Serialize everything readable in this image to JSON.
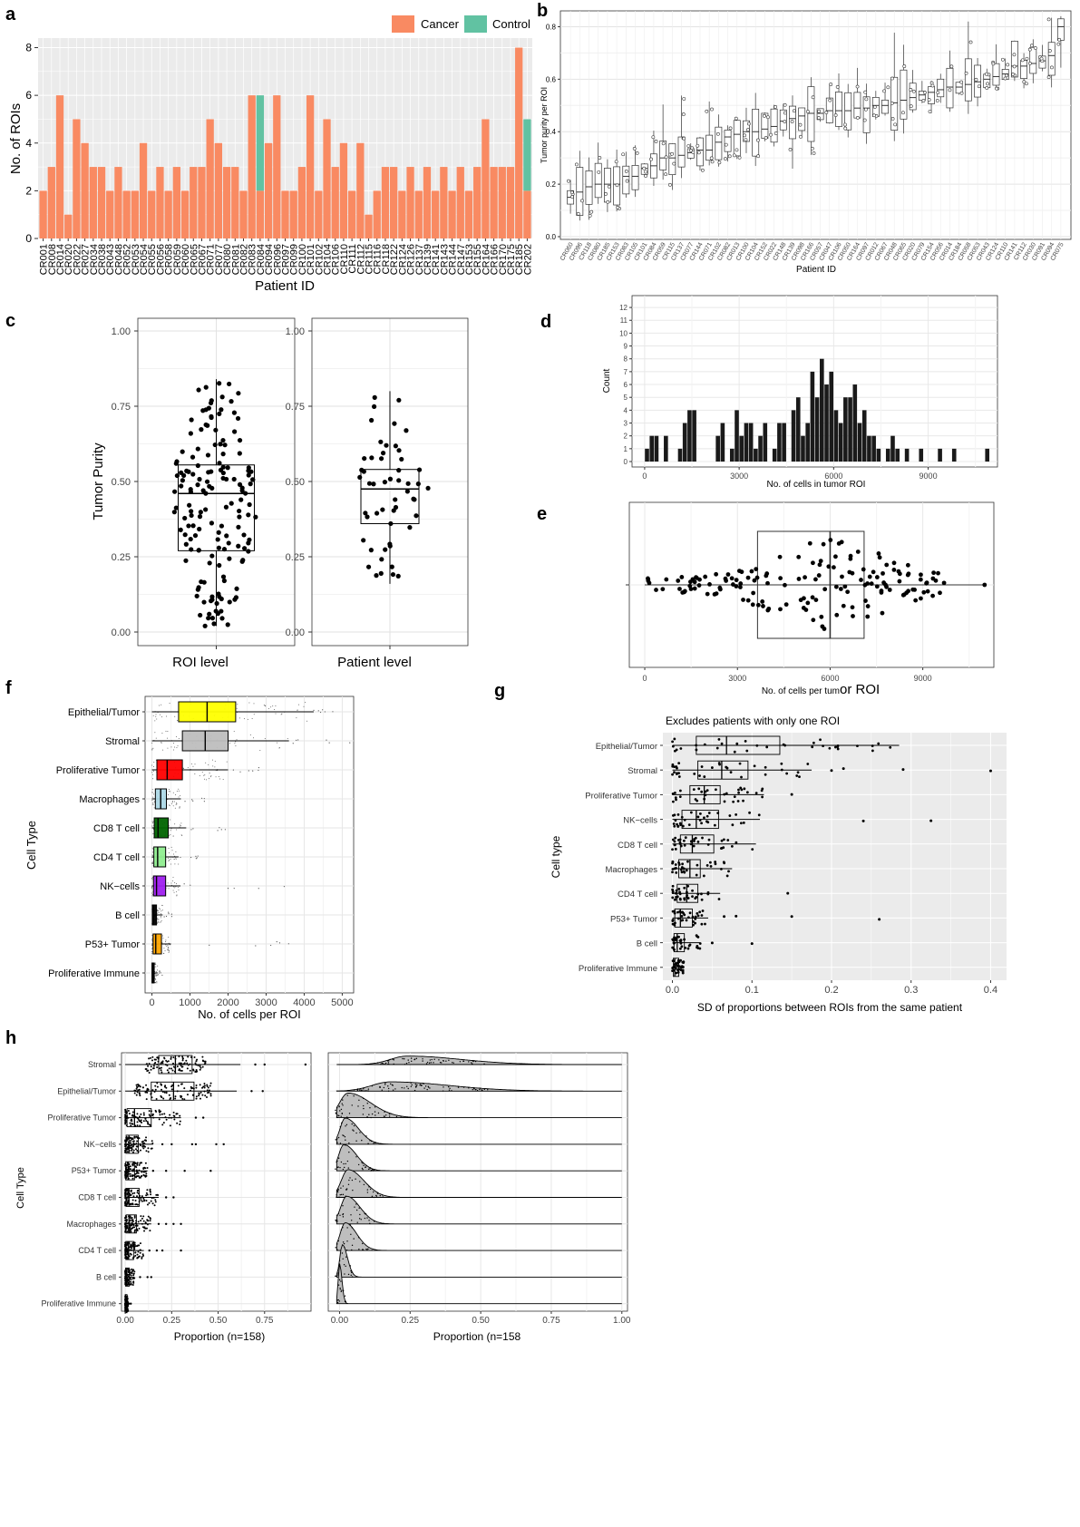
{
  "colors": {
    "cancer": "#F98A62",
    "control": "#61C2A2",
    "grey_panel": "#EBEBEB",
    "grid": "#FFFFFF"
  },
  "panel_labels": {
    "a": "a",
    "b": "b",
    "c": "c",
    "d": "d",
    "e": "e",
    "f": "f",
    "g": "g",
    "h": "h"
  },
  "chart_data": [
    {
      "panel": "a",
      "type": "bar",
      "xlabel": "Patient ID",
      "ylabel": "No. of ROIs",
      "ylim": [
        0,
        8.4
      ],
      "yticks": [
        0,
        2,
        4,
        6,
        8
      ],
      "legend": [
        "Cancer",
        "Control"
      ],
      "categories": [
        "CR001",
        "CR008",
        "CR014",
        "CR020",
        "CR022",
        "CR027",
        "CR034",
        "CR038",
        "CR043",
        "CR048",
        "CR052",
        "CR053",
        "CR054",
        "CR055",
        "CR056",
        "CR058",
        "CR059",
        "CR060",
        "CR065",
        "CR067",
        "CR071",
        "CR077",
        "CR080",
        "CR081",
        "CR082",
        "CR083",
        "CR084",
        "CR094",
        "CR096",
        "CR097",
        "CR099",
        "CR100",
        "CR101",
        "CR102",
        "CR104",
        "CR106",
        "CR110",
        "CR111",
        "CR112",
        "CR115",
        "CR116",
        "CR118",
        "CR122",
        "CR124",
        "CR126",
        "CR137",
        "CR139",
        "CR141",
        "CR143",
        "CR144",
        "CR147",
        "CR153",
        "CR155",
        "CR164",
        "CR166",
        "CR170",
        "CR175",
        "CR185",
        "CR202"
      ],
      "tick_labels": [
        "CR001",
        "CR008",
        "CR014",
        "CR020",
        "CR022",
        "CR027",
        "CR034",
        "CR038",
        "CR043",
        "CR048",
        "CR052",
        "CR053",
        "CR054",
        "CR055",
        "CR056",
        "CR058",
        "CR059",
        "CR060",
        "CR065",
        "CR067",
        "CR071",
        "CR077",
        "CR080",
        "CR081",
        "CR082",
        "CR083",
        "CR084",
        "CR094",
        "CR096",
        "CR097",
        "CR099",
        "CR100",
        "CR101",
        "CR102",
        "CR104",
        "CR106",
        "CR110",
        "CR111",
        "CR112",
        "CR115",
        "CR116",
        "CR118",
        "CR122",
        "CR124",
        "CR126",
        "CR137",
        "CR139",
        "CR141",
        "CR143",
        "CR144",
        "CR147",
        "CR153",
        "CR155",
        "CR164",
        "CR166",
        "CR170",
        "CR175",
        "CR185",
        "CR202"
      ],
      "series": [
        {
          "name": "Cancer",
          "values": [
            2,
            3,
            6,
            1,
            5,
            4,
            3,
            3,
            2,
            3,
            2,
            2,
            4,
            2,
            3,
            2,
            3,
            2,
            3,
            3,
            5,
            4,
            3,
            3,
            2,
            6,
            2,
            4,
            6,
            2,
            2,
            3,
            6,
            2,
            5,
            3,
            4,
            2,
            4,
            1,
            2,
            3,
            3,
            2,
            3,
            2,
            3,
            2,
            3,
            2,
            3,
            2,
            3,
            5,
            3,
            3,
            3,
            8,
            2
          ]
        },
        {
          "name": "Control",
          "values": [
            0,
            0,
            0,
            0,
            0,
            0,
            0,
            0,
            0,
            0,
            0,
            0,
            0,
            0,
            0,
            0,
            0,
            0,
            0,
            0,
            0,
            0,
            0,
            0,
            0,
            0,
            4,
            0,
            0,
            0,
            0,
            0,
            0,
            0,
            0,
            0,
            0,
            0,
            0,
            0,
            0,
            0,
            0,
            0,
            0,
            0,
            0,
            0,
            0,
            0,
            0,
            0,
            0,
            0,
            0,
            0,
            0,
            0,
            3
          ]
        }
      ]
    },
    {
      "panel": "b",
      "type": "box",
      "xlabel": "Patient ID",
      "ylabel": "Tumor purity per ROI",
      "ylim": [
        0,
        0.85
      ],
      "yticks": [
        0.0,
        0.2,
        0.4,
        0.6,
        0.8
      ],
      "tick_labels": [
        "CR060",
        "CR096",
        "CR118",
        "CR080",
        "CR185",
        "CR153",
        "CR083",
        "CR105",
        "CR101",
        "CR084",
        "CR059",
        "CR115",
        "CR137",
        "CR077",
        "CR144",
        "CR071",
        "CR102",
        "CR082",
        "CR013",
        "CR100",
        "CR104",
        "CR152",
        "CR022",
        "CR148",
        "CR139",
        "CR098",
        "CR166",
        "CR057",
        "CR047",
        "CR106",
        "CR050",
        "CR164",
        "CR097",
        "CR012",
        "CR067",
        "CR048",
        "CR065",
        "CR020",
        "CR079",
        "CR154",
        "CR056",
        "CR014",
        "CR184",
        "CR058",
        "CR053",
        "CR043",
        "CR124",
        "CR110",
        "CR141",
        "CR112",
        "CR030",
        "CR091",
        "CR094",
        "CR075"
      ],
      "medians": [
        0.15,
        0.17,
        0.19,
        0.2,
        0.2,
        0.2,
        0.23,
        0.23,
        0.26,
        0.27,
        0.3,
        0.3,
        0.31,
        0.32,
        0.33,
        0.33,
        0.36,
        0.38,
        0.39,
        0.4,
        0.4,
        0.41,
        0.42,
        0.44,
        0.45,
        0.46,
        0.47,
        0.47,
        0.48,
        0.48,
        0.48,
        0.49,
        0.49,
        0.5,
        0.5,
        0.51,
        0.52,
        0.53,
        0.54,
        0.55,
        0.56,
        0.57,
        0.57,
        0.58,
        0.59,
        0.6,
        0.61,
        0.62,
        0.65,
        0.65,
        0.66,
        0.67,
        0.69,
        0.8
      ]
    },
    {
      "panel": "c",
      "type": "box",
      "ylabel": "Tumor Purity",
      "ylim": [
        0,
        1
      ],
      "yticks": [
        "0.00",
        "0.25",
        "0.50",
        "0.75",
        "1.00"
      ],
      "groups": [
        {
          "name": "ROI level",
          "n": 158,
          "min": 0.02,
          "q1": 0.27,
          "median": 0.46,
          "q3": 0.555,
          "max": 0.84
        },
        {
          "name": "Patient level",
          "n": 53,
          "min": 0.16,
          "q1": 0.36,
          "median": 0.475,
          "q3": 0.54,
          "max": 0.8
        }
      ]
    },
    {
      "panel": "d",
      "type": "bar",
      "xlabel": "No. of cells in tumor ROI",
      "ylabel": "Count",
      "xlim": [
        -400,
        11200
      ],
      "xticks": [
        0,
        3000,
        6000,
        9000
      ],
      "ylim": [
        0,
        12.5
      ],
      "yticks": [
        0,
        1,
        2,
        3,
        4,
        5,
        6,
        7,
        8,
        9,
        10,
        11,
        12
      ],
      "binwidth": 150,
      "bin_starts": [
        0,
        150,
        300,
        450,
        600,
        750,
        900,
        1050,
        1200,
        1350,
        1500,
        1650,
        1800,
        1950,
        2100,
        2250,
        2400,
        2550,
        2700,
        2850,
        3000,
        3150,
        3300,
        3450,
        3600,
        3750,
        3900,
        4050,
        4200,
        4350,
        4500,
        4650,
        4800,
        4950,
        5100,
        5250,
        5400,
        5550,
        5700,
        5850,
        6000,
        6150,
        6300,
        6450,
        6600,
        6750,
        6900,
        7050,
        7200,
        7350,
        7500,
        7650,
        7800,
        7950,
        8100,
        8250,
        8400,
        8550,
        8700,
        8850,
        9000,
        9150,
        9300,
        9450,
        9600,
        9750,
        9900,
        10050,
        10200,
        10350,
        10500,
        10650,
        10800,
        10950
      ],
      "values": [
        1,
        2,
        2,
        0,
        2,
        0,
        0,
        1,
        3,
        4,
        4,
        0,
        0,
        0,
        0,
        2,
        3,
        0,
        1,
        4,
        2,
        3,
        3,
        1,
        2,
        3,
        0,
        1,
        3,
        3,
        0,
        4,
        5,
        2,
        3,
        7,
        5,
        8,
        6,
        7,
        4,
        3,
        5,
        5,
        6,
        3,
        4,
        2,
        2,
        1,
        0,
        1,
        2,
        1,
        0,
        1,
        0,
        0,
        1,
        0,
        0,
        0,
        1,
        0,
        0,
        1,
        0,
        0,
        0,
        0,
        0,
        0,
        1,
        0
      ]
    },
    {
      "panel": "e",
      "type": "box",
      "xlabel_part1": "No. of cells per tum",
      "xlabel_part2": "or ROI",
      "xlim": [
        -500,
        11300
      ],
      "xticks": [
        0,
        3000,
        6000,
        9000
      ],
      "n": 158,
      "min": 0,
      "q1": 3650,
      "median": 6000,
      "q3": 7100,
      "max": 11000
    },
    {
      "panel": "f",
      "type": "box",
      "xlabel": "No. of cells per ROI",
      "ylabel": "Cell Type",
      "xlim": [
        -180,
        5300
      ],
      "xticks": [
        0,
        1000,
        2000,
        3000,
        4000,
        5000
      ],
      "categories": [
        "Epithelial/Tumor",
        "Stromal",
        "Proliferative Tumor",
        "Macrophages",
        "CD8 T cell",
        "CD4 T cell",
        "NK−cells",
        "B cell",
        "P53+ Tumor",
        "Proliferative Immune"
      ],
      "fill_colors": [
        "#FFFF00",
        "#BEBEBE",
        "#FF0000",
        "#ADD8E6",
        "#006400",
        "#90EE90",
        "#A020F0",
        "#000000",
        "#FFA500",
        "#000000"
      ],
      "boxes": [
        {
          "min": 0,
          "q1": 700,
          "median": 1450,
          "q3": 2200,
          "max": 4250,
          "outmax": 5100
        },
        {
          "min": 0,
          "q1": 800,
          "median": 1400,
          "q3": 2000,
          "max": 3600,
          "outmax": 5200
        },
        {
          "min": 0,
          "q1": 130,
          "median": 400,
          "q3": 800,
          "max": 2000,
          "outmax": 2900
        },
        {
          "min": 0,
          "q1": 90,
          "median": 230,
          "q3": 380,
          "max": 760,
          "outmax": 1400
        },
        {
          "min": 0,
          "q1": 60,
          "median": 160,
          "q3": 430,
          "max": 900,
          "outmax": 2300
        },
        {
          "min": 0,
          "q1": 50,
          "median": 150,
          "q3": 360,
          "max": 700,
          "outmax": 1250
        },
        {
          "min": 0,
          "q1": 40,
          "median": 120,
          "q3": 360,
          "max": 750,
          "outmax": 3900
        },
        {
          "min": 0,
          "q1": 10,
          "median": 40,
          "q3": 120,
          "max": 280,
          "outmax": 600
        },
        {
          "min": 0,
          "q1": 30,
          "median": 100,
          "q3": 250,
          "max": 500,
          "outmax": 3700
        },
        {
          "min": 0,
          "q1": 0,
          "median": 20,
          "q3": 60,
          "max": 150,
          "outmax": 300
        }
      ]
    },
    {
      "panel": "g",
      "type": "box",
      "title": "Excludes patients with only one ROI",
      "xlabel": "SD of proportions between ROIs from the same patient",
      "ylabel": "Cell type",
      "xlim": [
        -0.012,
        0.42
      ],
      "xticks": [
        "0.0",
        "0.1",
        "0.2",
        "0.3",
        "0.4"
      ],
      "categories": [
        "Epithelial/Tumor",
        "Stromal",
        "Proliferative Tumor",
        "NK−cells",
        "CD8 T cell",
        "Macrophages",
        "CD4 T cell",
        "P53+ Tumor",
        "B cell",
        "Proliferative Immune"
      ],
      "boxes": [
        {
          "min": 0,
          "q1": 0.03,
          "median": 0.068,
          "q3": 0.135,
          "max": 0.285,
          "outliers": []
        },
        {
          "min": 0,
          "q1": 0.032,
          "median": 0.062,
          "q3": 0.095,
          "max": 0.175,
          "outliers": [
            0.2,
            0.215,
            0.29,
            0.4
          ]
        },
        {
          "min": 0,
          "q1": 0.022,
          "median": 0.04,
          "q3": 0.06,
          "max": 0.115,
          "outliers": [
            0.15
          ]
        },
        {
          "min": 0,
          "q1": 0.012,
          "median": 0.03,
          "q3": 0.058,
          "max": 0.11,
          "outliers": [
            0.24,
            0.325
          ]
        },
        {
          "min": 0,
          "q1": 0.01,
          "median": 0.025,
          "q3": 0.052,
          "max": 0.105,
          "outliers": []
        },
        {
          "min": 0,
          "q1": 0.008,
          "median": 0.022,
          "q3": 0.035,
          "max": 0.075,
          "outliers": []
        },
        {
          "min": 0,
          "q1": 0.006,
          "median": 0.018,
          "q3": 0.032,
          "max": 0.06,
          "outliers": [
            0.145
          ]
        },
        {
          "min": 0,
          "q1": 0.003,
          "median": 0.01,
          "q3": 0.025,
          "max": 0.045,
          "outliers": [
            0.065,
            0.08,
            0.15,
            0.26
          ]
        },
        {
          "min": 0,
          "q1": 0.002,
          "median": 0.006,
          "q3": 0.015,
          "max": 0.035,
          "outliers": [
            0.05,
            0.1
          ]
        },
        {
          "min": 0,
          "q1": 0.001,
          "median": 0.003,
          "q3": 0.008,
          "max": 0.015,
          "outliers": []
        }
      ]
    },
    {
      "panel": "h",
      "type": "box",
      "xlabel": "Proportion (n=158)",
      "ylabel": "Cell Type",
      "xlim": [
        -0.02,
        1.0
      ],
      "xticks": [
        "0.00",
        "0.25",
        "0.50",
        "0.75"
      ],
      "categories": [
        "Stromal",
        "Epithelial/Tumor",
        "Proliferative Tumor",
        "NK−cells",
        "P53+ Tumor",
        "CD8 T cell",
        "Macrophages",
        "CD4 T cell",
        "B cell",
        "Proliferative Immune"
      ],
      "boxes": [
        {
          "min": 0.0,
          "q1": 0.18,
          "median": 0.27,
          "q3": 0.36,
          "max": 0.62,
          "outliers": [
            0.7,
            0.75,
            0.97
          ]
        },
        {
          "min": 0.0,
          "q1": 0.14,
          "median": 0.26,
          "q3": 0.37,
          "max": 0.6,
          "outliers": [
            0.68,
            0.74
          ]
        },
        {
          "min": 0.0,
          "q1": 0.01,
          "median": 0.05,
          "q3": 0.14,
          "max": 0.3,
          "outliers": [
            0.38,
            0.42
          ]
        },
        {
          "min": 0.0,
          "q1": 0.005,
          "median": 0.02,
          "q3": 0.07,
          "max": 0.15,
          "outliers": [
            0.2,
            0.25,
            0.36,
            0.38,
            0.49,
            0.53
          ]
        },
        {
          "min": 0.0,
          "q1": 0.003,
          "median": 0.015,
          "q3": 0.05,
          "max": 0.12,
          "outliers": [
            0.15,
            0.22,
            0.32,
            0.46
          ]
        },
        {
          "min": 0.0,
          "q1": 0.005,
          "median": 0.02,
          "q3": 0.075,
          "max": 0.18,
          "outliers": [
            0.22,
            0.26
          ]
        },
        {
          "min": 0.0,
          "q1": 0.005,
          "median": 0.02,
          "q3": 0.06,
          "max": 0.14,
          "outliers": [
            0.18,
            0.22,
            0.26,
            0.3
          ]
        },
        {
          "min": 0.0,
          "q1": 0.004,
          "median": 0.018,
          "q3": 0.045,
          "max": 0.1,
          "outliers": [
            0.13,
            0.17,
            0.2,
            0.3
          ]
        },
        {
          "min": 0.0,
          "q1": 0.002,
          "median": 0.008,
          "q3": 0.022,
          "max": 0.05,
          "outliers": [
            0.08,
            0.12,
            0.14
          ]
        },
        {
          "min": 0.0,
          "q1": 0.0,
          "median": 0.002,
          "q3": 0.006,
          "max": 0.015,
          "outliers": [
            0.02,
            0.03
          ]
        }
      ]
    },
    {
      "panel": "h2",
      "type": "area",
      "xlabel": "Proportion (n=158",
      "xlim": [
        -0.04,
        1.02
      ],
      "xticks": [
        "0.00",
        "0.25",
        "0.50",
        "0.75",
        "1.00"
      ],
      "ridges": [
        {
          "mode": 0.24,
          "sd": 0.1,
          "height": 0.55,
          "tail": 0.9
        },
        {
          "mode": 0.18,
          "sd": 0.11,
          "height": 0.6,
          "tail": 0.9
        },
        {
          "mode": 0.03,
          "sd": 0.05,
          "height": 1.6,
          "tail": 0.6
        },
        {
          "mode": 0.02,
          "sd": 0.03,
          "height": 1.7,
          "tail": 0.55
        },
        {
          "mode": 0.015,
          "sd": 0.03,
          "height": 1.7,
          "tail": 0.5
        },
        {
          "mode": 0.03,
          "sd": 0.04,
          "height": 1.8,
          "tail": 0.4
        },
        {
          "mode": 0.025,
          "sd": 0.035,
          "height": 1.8,
          "tail": 0.35
        },
        {
          "mode": 0.02,
          "sd": 0.03,
          "height": 1.8,
          "tail": 0.35
        },
        {
          "mode": 0.01,
          "sd": 0.015,
          "height": 2.1,
          "tail": 0.2
        },
        {
          "mode": 0.0,
          "sd": 0.008,
          "height": 2.6,
          "tail": 0.05
        }
      ]
    }
  ]
}
